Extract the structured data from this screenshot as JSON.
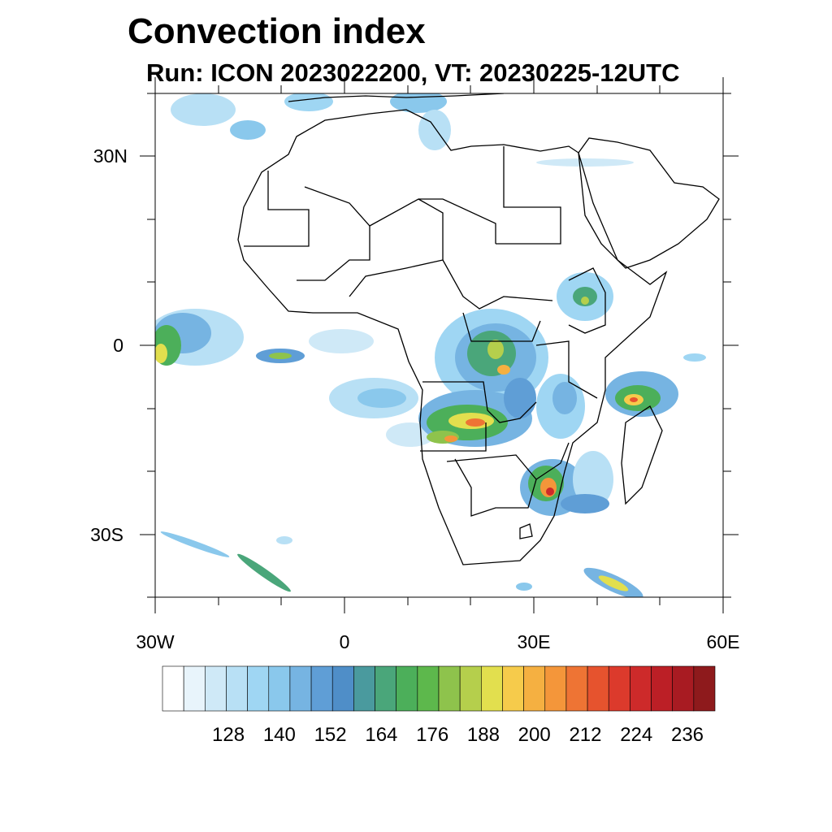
{
  "title": "Convection index",
  "subtitle": "Run: ICON 2023022200,  VT: 20230225-12UTC",
  "map": {
    "lat_range": [
      -40,
      40
    ],
    "lon_range": [
      -30,
      60
    ],
    "lat_ticks": [
      {
        "value": 30,
        "label": "30N"
      },
      {
        "value": 0,
        "label": "0"
      },
      {
        "value": -30,
        "label": "30S"
      }
    ],
    "lat_minor_ticks": [
      40,
      20,
      10,
      -10,
      -20,
      -40
    ],
    "lon_ticks": [
      {
        "value": -30,
        "label": "30W"
      },
      {
        "value": 0,
        "label": "0"
      },
      {
        "value": 30,
        "label": "30E"
      },
      {
        "value": 60,
        "label": "60E"
      }
    ],
    "lon_minor_ticks": [
      -20,
      -10,
      10,
      20,
      40,
      50
    ]
  },
  "colorbar": {
    "colors": [
      "#ffffff",
      "#e8f4fb",
      "#cfe9f7",
      "#b8e0f5",
      "#9fd6f3",
      "#8ac8ec",
      "#76b4e2",
      "#5f9ed6",
      "#4f8ec8",
      "#4a9a9e",
      "#4aa67a",
      "#4caf5a",
      "#5db84c",
      "#8ec34c",
      "#b5cf4c",
      "#e2df4e",
      "#f6cb4b",
      "#f5b041",
      "#f4963a",
      "#ee7434",
      "#e6532e",
      "#dc3a2c",
      "#cd2a2a",
      "#bc1f26",
      "#a81b22",
      "#8e1a1c"
    ],
    "labels": [
      "128",
      "140",
      "152",
      "164",
      "176",
      "188",
      "200",
      "212",
      "224",
      "236"
    ]
  }
}
